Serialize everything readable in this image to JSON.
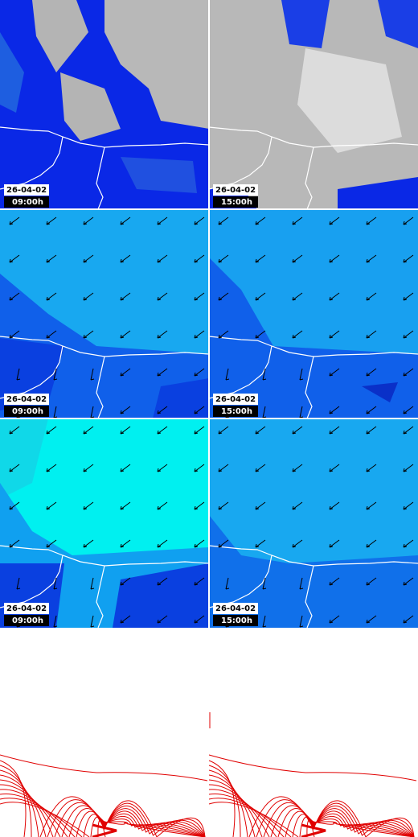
{
  "panels": [
    {
      "date": "26-04-02",
      "time": "09:00h"
    },
    {
      "date": "26-04-02",
      "time": "15:00h"
    },
    {
      "date": "26-04-02",
      "time": "09:00h"
    },
    {
      "date": "26-04-02",
      "time": "15:00h"
    },
    {
      "date": "26-04-02",
      "time": "09:00h"
    },
    {
      "date": "26-04-02",
      "time": "15:00h"
    }
  ]
}
